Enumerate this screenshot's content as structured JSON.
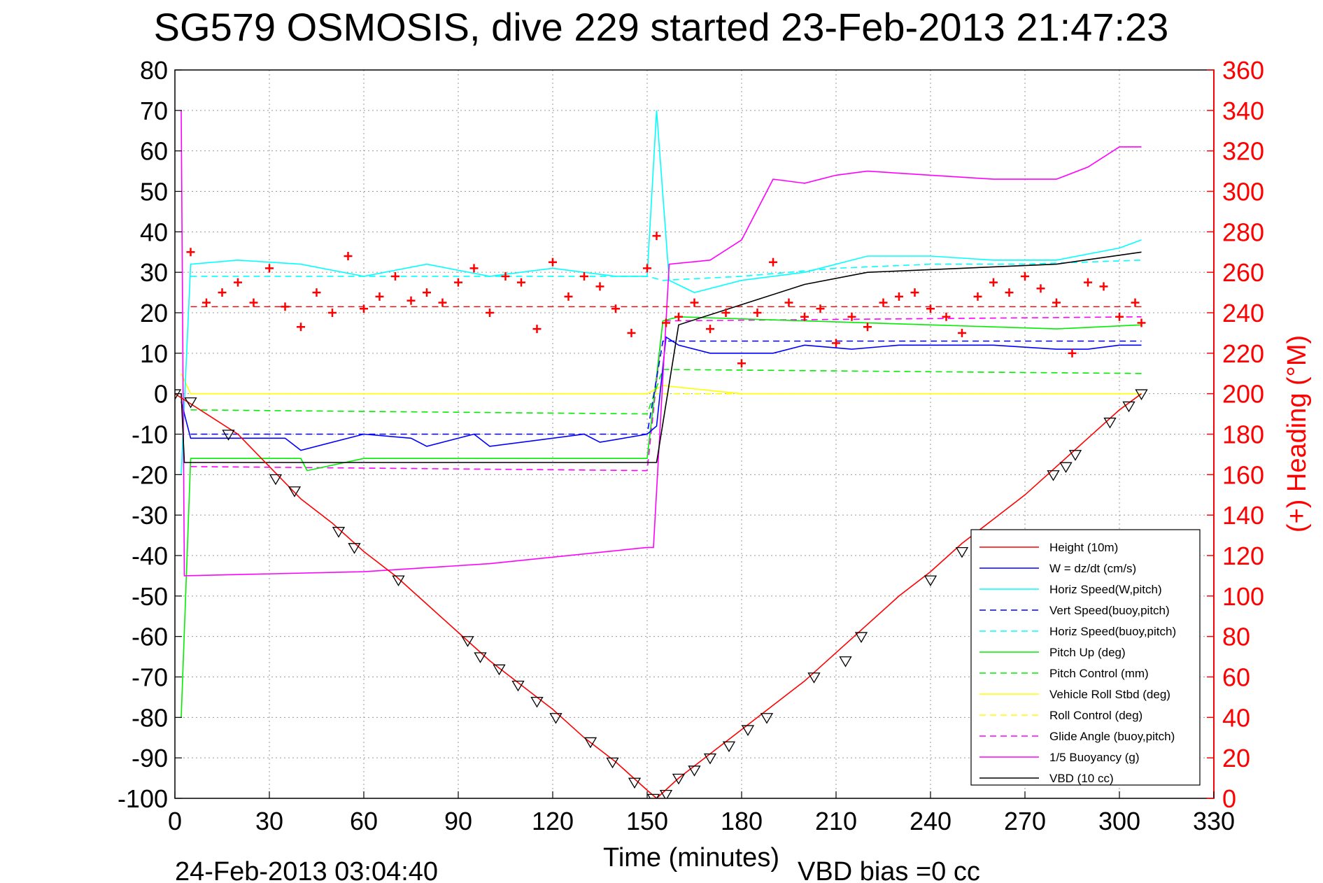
{
  "chart_data": {
    "type": "line",
    "title": "SG579 OSMOSIS, dive 229 started 23-Feb-2013 21:47:23",
    "xlabel": "Time (minutes)",
    "ylabel": "",
    "y2label": "(+) Heading (°M)",
    "footer_left": "24-Feb-2013 03:04:40",
    "footer_right": "VBD bias =0 cc",
    "xlim": [
      0,
      330
    ],
    "ylim": [
      -100,
      80
    ],
    "y2lim": [
      0,
      360
    ],
    "xticks": [
      "0",
      "30",
      "60",
      "90",
      "120",
      "150",
      "180",
      "210",
      "240",
      "270",
      "300",
      "330"
    ],
    "yticks": [
      "80",
      "70",
      "60",
      "50",
      "40",
      "30",
      "20",
      "10",
      "0",
      "-10",
      "-20",
      "-30",
      "-40",
      "-50",
      "-60",
      "-70",
      "-80",
      "-90",
      "-100"
    ],
    "y2ticks": [
      "360",
      "340",
      "320",
      "300",
      "280",
      "260",
      "240",
      "220",
      "200",
      "180",
      "160",
      "140",
      "120",
      "100",
      "80",
      "60",
      "40",
      "20",
      "0"
    ],
    "grid": true,
    "legend_position": "bottom-right",
    "colors": {
      "height": "#ff0000",
      "w": "#0000ff",
      "horiz_speed": "#00ffff",
      "vert_speed_buoy": "#0000ff",
      "horiz_speed_buoy": "#00ffff",
      "pitch": "#00ee00",
      "pitch_control": "#00ee00",
      "roll": "#ffff00",
      "roll_control": "#ffff00",
      "glide_angle": "#ff00ff",
      "buoyancy": "#ff00ff",
      "vbd": "#000000",
      "heading": "#ff0000"
    },
    "series": [
      {
        "name": "Height (10m)",
        "key": "height",
        "style": "solid",
        "x": [
          0,
          10,
          20,
          30,
          40,
          50,
          60,
          70,
          80,
          90,
          100,
          110,
          120,
          130,
          140,
          150,
          153,
          160,
          170,
          180,
          190,
          200,
          210,
          220,
          230,
          240,
          250,
          260,
          270,
          280,
          290,
          300,
          307
        ],
        "y": [
          0,
          -5,
          -10,
          -18,
          -26,
          -32,
          -39,
          -45,
          -52,
          -59,
          -66,
          -72,
          -78,
          -85,
          -91,
          -98,
          -100,
          -95,
          -89,
          -83,
          -77,
          -71,
          -64,
          -57,
          -50,
          -44,
          -37,
          -31,
          -25,
          -18,
          -11,
          -4,
          0
        ]
      },
      {
        "name": "W = dz/dt (cm/s)",
        "key": "w",
        "style": "solid",
        "x": [
          2,
          5,
          20,
          35,
          40,
          60,
          75,
          80,
          95,
          100,
          130,
          135,
          150,
          153,
          156,
          160,
          170,
          190,
          200,
          215,
          230,
          260,
          280,
          290,
          300,
          307
        ],
        "y": [
          -2,
          -11,
          -11,
          -11,
          -14,
          -10,
          -11,
          -13,
          -10,
          -13,
          -10,
          -12,
          -10,
          -8,
          14,
          12,
          10,
          10,
          12,
          11,
          12,
          12,
          11,
          11,
          12,
          12
        ]
      },
      {
        "name": "Horiz Speed(W,pitch)",
        "key": "horiz_speed",
        "style": "solid",
        "x": [
          2,
          5,
          20,
          40,
          60,
          80,
          100,
          120,
          140,
          150,
          153,
          157,
          165,
          180,
          200,
          220,
          240,
          260,
          280,
          300,
          307
        ],
        "y": [
          -20,
          32,
          33,
          32,
          29,
          32,
          29,
          31,
          29,
          29,
          70,
          28,
          25,
          28,
          30,
          34,
          34,
          33,
          33,
          36,
          38
        ]
      },
      {
        "name": "Vert Speed(buoy,pitch)",
        "key": "vert_speed_buoy",
        "style": "dashed",
        "x": [
          5,
          150,
          155,
          307
        ],
        "y": [
          -10,
          -10,
          13,
          13
        ]
      },
      {
        "name": "Horiz Speed(buoy,pitch)",
        "key": "horiz_speed_buoy",
        "style": "dashed",
        "x": [
          5,
          150,
          155,
          180,
          210,
          240,
          270,
          307
        ],
        "y": [
          29,
          29,
          28,
          29,
          31,
          32,
          32,
          33
        ]
      },
      {
        "name": "Pitch Up (deg)",
        "key": "pitch",
        "style": "solid",
        "x": [
          2,
          5,
          40,
          42,
          60,
          80,
          100,
          130,
          150,
          155,
          160,
          200,
          240,
          280,
          307
        ],
        "y": [
          -80,
          -16,
          -16,
          -19,
          -16,
          -16,
          -16,
          -16,
          -16,
          18,
          19,
          18,
          17,
          16,
          17
        ]
      },
      {
        "name": "Pitch Control (mm)",
        "key": "pitch_control",
        "style": "dashed",
        "x": [
          5,
          150,
          155,
          307
        ],
        "y": [
          -4,
          -5,
          6,
          5
        ]
      },
      {
        "name": "Vehicle Roll Stbd (deg)",
        "key": "roll",
        "style": "solid",
        "x": [
          2,
          5,
          20,
          40,
          60,
          80,
          100,
          120,
          140,
          150,
          155,
          180,
          210,
          240,
          270,
          300,
          307
        ],
        "y": [
          5,
          0,
          0,
          0,
          0,
          0,
          0,
          0,
          0,
          0,
          2,
          0,
          0,
          0,
          0,
          0,
          0
        ]
      },
      {
        "name": "Roll Control (deg)",
        "key": "roll_control",
        "style": "dashed",
        "x": [
          5,
          150,
          155,
          307
        ],
        "y": [
          0,
          0,
          0,
          0
        ]
      },
      {
        "name": "Glide Angle (buoy,pitch)",
        "key": "glide_angle",
        "style": "dashed",
        "x": [
          5,
          150,
          155,
          307
        ],
        "y": [
          -18,
          -19,
          18,
          19
        ]
      },
      {
        "name": "1/5 Buoyancy (g)",
        "key": "buoyancy",
        "style": "solid",
        "x": [
          2,
          3,
          60,
          100,
          150,
          152,
          157,
          170,
          180,
          190,
          200,
          210,
          220,
          240,
          260,
          280,
          290,
          300,
          307
        ],
        "y": [
          70,
          -45,
          -44,
          -42,
          -38,
          -38,
          32,
          33,
          38,
          53,
          52,
          54,
          55,
          54,
          53,
          53,
          56,
          61,
          61
        ]
      },
      {
        "name": "VBD (10 cc)",
        "key": "vbd",
        "style": "solid",
        "x": [
          2,
          3,
          150,
          153,
          160,
          180,
          200,
          220,
          250,
          280,
          307
        ],
        "y": [
          0,
          -17,
          -17,
          -17,
          17,
          22,
          27,
          30,
          31,
          32,
          35
        ]
      }
    ],
    "heading_series": {
      "name": "Heading",
      "marker": "+",
      "axis": "right",
      "target": 243,
      "x": [
        5,
        10,
        15,
        20,
        25,
        30,
        35,
        40,
        45,
        50,
        55,
        60,
        65,
        70,
        75,
        80,
        85,
        90,
        95,
        100,
        105,
        110,
        115,
        120,
        125,
        130,
        135,
        140,
        145,
        150,
        153,
        156,
        160,
        165,
        170,
        175,
        180,
        185,
        190,
        195,
        200,
        205,
        210,
        215,
        220,
        225,
        230,
        235,
        240,
        245,
        250,
        255,
        260,
        265,
        270,
        275,
        280,
        285,
        290,
        295,
        300,
        305,
        307
      ],
      "y": [
        270,
        245,
        250,
        255,
        245,
        262,
        243,
        233,
        250,
        240,
        268,
        242,
        248,
        258,
        246,
        250,
        245,
        255,
        262,
        240,
        258,
        255,
        232,
        265,
        248,
        258,
        253,
        242,
        230,
        262,
        278,
        235,
        238,
        245,
        232,
        240,
        215,
        240,
        265,
        245,
        238,
        242,
        225,
        238,
        233,
        245,
        248,
        250,
        242,
        238,
        230,
        248,
        255,
        250,
        258,
        252,
        245,
        220,
        255,
        253,
        238,
        245,
        235
      ]
    },
    "depth_markers": [
      {
        "x": 0,
        "y": 0
      },
      {
        "x": 5,
        "y": -2
      },
      {
        "x": 17,
        "y": -10
      },
      {
        "x": 32,
        "y": -21
      },
      {
        "x": 38,
        "y": -24
      },
      {
        "x": 52,
        "y": -34
      },
      {
        "x": 57,
        "y": -38
      },
      {
        "x": 71,
        "y": -46
      },
      {
        "x": 93,
        "y": -61
      },
      {
        "x": 97,
        "y": -65
      },
      {
        "x": 103,
        "y": -68
      },
      {
        "x": 109,
        "y": -72
      },
      {
        "x": 115,
        "y": -76
      },
      {
        "x": 121,
        "y": -80
      },
      {
        "x": 132,
        "y": -86
      },
      {
        "x": 139,
        "y": -91
      },
      {
        "x": 146,
        "y": -96
      },
      {
        "x": 152,
        "y": -100
      },
      {
        "x": 156,
        "y": -99
      },
      {
        "x": 160,
        "y": -95
      },
      {
        "x": 165,
        "y": -93
      },
      {
        "x": 170,
        "y": -90
      },
      {
        "x": 176,
        "y": -87
      },
      {
        "x": 182,
        "y": -83
      },
      {
        "x": 188,
        "y": -80
      },
      {
        "x": 203,
        "y": -70
      },
      {
        "x": 213,
        "y": -66
      },
      {
        "x": 218,
        "y": -60
      },
      {
        "x": 240,
        "y": -46
      },
      {
        "x": 250,
        "y": -39
      },
      {
        "x": 256,
        "y": -35
      },
      {
        "x": 279,
        "y": -20
      },
      {
        "x": 283,
        "y": -18
      },
      {
        "x": 286,
        "y": -15
      },
      {
        "x": 297,
        "y": -7
      },
      {
        "x": 303,
        "y": -3
      },
      {
        "x": 307,
        "y": 0
      }
    ]
  }
}
